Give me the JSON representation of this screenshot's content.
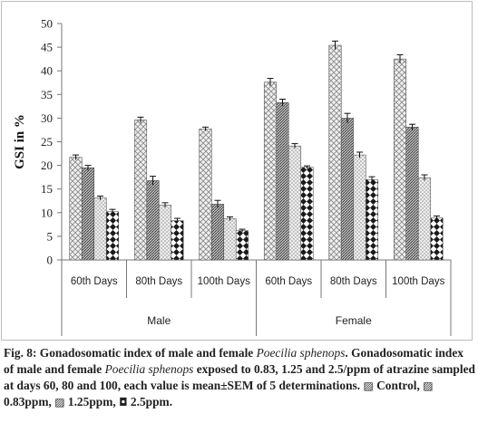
{
  "chart_data": {
    "type": "bar",
    "ylabel": "GSI in %",
    "ylim": [
      0,
      50
    ],
    "yticks": [
      0,
      5,
      10,
      15,
      20,
      25,
      30,
      35,
      40,
      45,
      50
    ],
    "groups": [
      {
        "label": "Male",
        "categories": [
          "60th Days",
          "80th Days",
          "100th Days"
        ]
      },
      {
        "label": "Female",
        "categories": [
          "60th Days",
          "80th Days",
          "100th Days"
        ]
      }
    ],
    "categories": [
      "60th Days",
      "80th Days",
      "100th Days",
      "60th Days",
      "80th Days",
      "100th Days"
    ],
    "series": [
      {
        "name": "Control",
        "values": [
          21.7,
          29.6,
          27.7,
          37.6,
          45.4,
          42.5
        ],
        "errors": [
          0.5,
          0.6,
          0.4,
          0.8,
          0.9,
          0.9
        ],
        "color": "#d9d9d9",
        "pattern": "crosshatch"
      },
      {
        "name": "0.83ppm",
        "values": [
          19.5,
          16.8,
          11.8,
          33.3,
          30.0,
          28.1
        ],
        "errors": [
          0.5,
          0.9,
          0.8,
          0.7,
          1.0,
          0.6
        ],
        "color": "#8c8c8c",
        "pattern": "dense-diag"
      },
      {
        "name": "1.25ppm",
        "values": [
          13.1,
          11.6,
          8.7,
          24.1,
          22.2,
          17.4
        ],
        "errors": [
          0.4,
          0.5,
          0.4,
          0.5,
          0.6,
          0.6
        ],
        "color": "#e6e6e6",
        "pattern": "light-cross"
      },
      {
        "name": "2.5ppm",
        "values": [
          10.2,
          8.3,
          6.2,
          19.6,
          17.0,
          8.9
        ],
        "errors": [
          0.5,
          0.5,
          0.3,
          0.3,
          0.6,
          0.4
        ],
        "color": "#2b2b2b",
        "pattern": "diamond"
      }
    ],
    "legend_placement": "in caption",
    "grid": false
  },
  "caption": {
    "fig_label": "Fig. 8: ",
    "title_prefix": "Gonadosomatic index of male and female ",
    "species": "Poecilia sphenops",
    "title_suffix": ".",
    "body_prefix": "Gonadosomatic index of male and female ",
    "body_species": "Poecilia sphenops",
    "body_text": " exposed to 0.83, 1.25 and 2.5/ppm of atrazine sampled at days 60, 80 and 100, each value is mean±SEM of 5 determinations. ",
    "legend": [
      {
        "glyph": "▨",
        "text": " Control, "
      },
      {
        "glyph": "▨",
        "text": " 0.83ppm, "
      },
      {
        "glyph": "▨",
        "text": " 1.25ppm, "
      },
      {
        "glyph": "◘",
        "text": " 2.5ppm."
      }
    ]
  }
}
